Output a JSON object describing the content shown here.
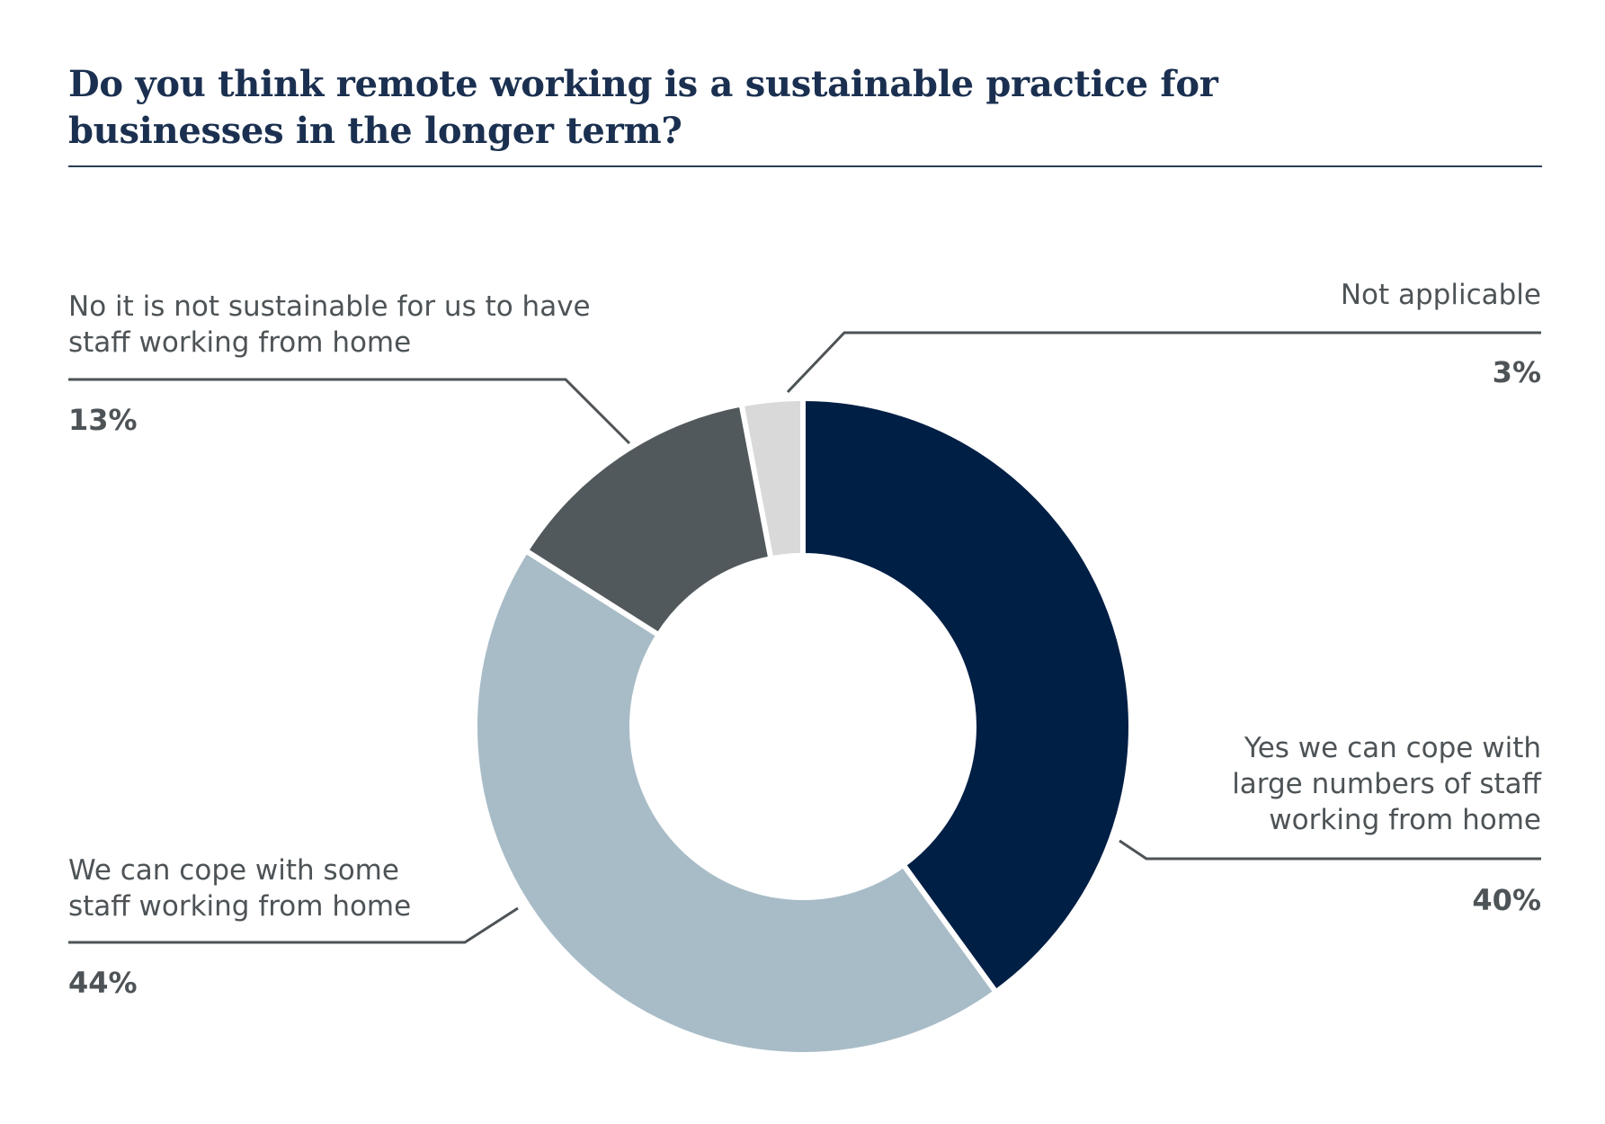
{
  "chart_data": {
    "type": "pie",
    "title": "Do you think remote working is a sustainable practice for businesses in the longer term?",
    "donut": true,
    "slices": [
      {
        "key": "yes",
        "label_lines": [
          "Yes  we can cope with",
          "large numbers of staff",
          "working from home"
        ],
        "value": 40,
        "value_label": "40%",
        "color": "#001f45"
      },
      {
        "key": "some",
        "label_lines": [
          "We can cope with some",
          "staff working from home"
        ],
        "value": 44,
        "value_label": "44%",
        "color": "#a8bcc7"
      },
      {
        "key": "no",
        "label_lines": [
          "No  it is not sustainable for us to have",
          "staff working from home"
        ],
        "value": 13,
        "value_label": "13%",
        "color": "#52595d"
      },
      {
        "key": "na",
        "label_lines": [
          "Not applicable"
        ],
        "value": 3,
        "value_label": "3%",
        "color": "#d9d9d9"
      }
    ]
  },
  "colors": {
    "title": "#1b3050",
    "text": "#4d5356",
    "leader": "#4d5356"
  }
}
